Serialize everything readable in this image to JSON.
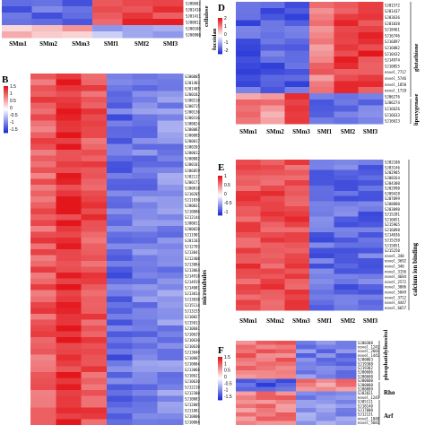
{
  "colors": {
    "low": "#1f2fd6",
    "mid": "#ffffff",
    "high": "#e3161b"
  },
  "panels": {
    "A": {
      "columns": [
        "SMm1",
        "SMm2",
        "SMm3",
        "SMf1",
        "SMf2",
        "SMf3"
      ],
      "rows": [
        "SJ00682",
        "SJ01410",
        "SJ01411",
        "SJ00012",
        "SJ00100",
        "SJ00900"
      ],
      "groups": [
        "cellulose",
        "fucoidan"
      ]
    },
    "B": {
      "label": "B",
      "legend_ticks": [
        "1.5",
        "1",
        "0.5",
        "0",
        "-0.5",
        "-1",
        "-1.5"
      ],
      "group": "microtubules",
      "rows": [
        "SJ00005",
        "SJ01403",
        "SJ01405",
        "SJ00182",
        "SJ00210",
        "SJ00715",
        "SJ00136",
        "SJ00316",
        "SJ00024",
        "SJ00087",
        "SJ00085",
        "SJ00017",
        "SJ00203",
        "SJ00012",
        "SJ00082",
        "SJ00101",
        "SJ06059",
        "SJ02117",
        "SJ00171",
        "SJ00018",
        "SJ10205",
        "SJ11830",
        "SJ00031",
        "SJ10006",
        "SJ12144",
        "SJ00011",
        "SJ00020",
        "SJ11901",
        "SJ01103",
        "SJ12703",
        "SJ13041",
        "SJ12408",
        "SJ13884",
        "SJ13064",
        "SJ14918",
        "SJ14919",
        "SJ14001",
        "SJ13014",
        "SJ13030",
        "SJ15114",
        "SJ13155",
        "SJ10027",
        "SJ15013",
        "SJ10601",
        "SJ10629",
        "SJ10630",
        "SJ10630",
        "SJ13040",
        "SJ10007",
        "SJ10004",
        "SJ13066",
        "SJ10621",
        "SJ10630",
        "SJ12210",
        "SJ12300",
        "SJ10003",
        "SJ12005",
        "SJ11001",
        "SJ10006",
        "SJ10004"
      ]
    },
    "D": {
      "label": "D",
      "legend_ticks": [
        "2",
        "1",
        "0",
        "-1",
        "-2"
      ],
      "columns": [
        "SMm1",
        "SMm2",
        "SMm3",
        "SMf1",
        "SMf2",
        "SMf3"
      ],
      "groups": [
        "glutathione",
        "lipoxygenase"
      ],
      "rows": [
        "SJ01572",
        "SJ01437",
        "SJ03636",
        "SJ01038",
        "SJ18461",
        "SJ16746",
        "SJ16897",
        "SJ16882",
        "SJ10432",
        "SJ14974",
        "SJ10855",
        "novel_7717",
        "novel_5746",
        "novel_1850",
        "novel_1718",
        "SJ06276",
        "SJ06274",
        "SJ16626",
        "SJ16633",
        "SJ16623"
      ]
    },
    "E": {
      "label": "E",
      "legend_ticks": [
        "1",
        "0.5",
        "0",
        "-0.5",
        "-1"
      ],
      "columns": [
        "SMm1",
        "SMm2",
        "SMm3",
        "SMf1",
        "SMf2",
        "SMf3"
      ],
      "group": "calcium ion binding",
      "rows": [
        "SJ02180",
        "SJ03146",
        "SJ02905",
        "SJ08264",
        "SJ04300",
        "SJ02990",
        "SJ09428",
        "SJ07099",
        "SJ08880",
        "SJ03090",
        "SJ15201",
        "SJ16051",
        "SJ15965",
        "SJ16098",
        "SJ14036",
        "SJ15250",
        "SJ15851",
        "SJ15250",
        "novel_340",
        "novel_3692",
        "novel_340",
        "novel_3156",
        "novel_4684",
        "novel_2572",
        "novel_3006",
        "novel_5849",
        "novel_3712",
        "novel_4447",
        "novel_6657"
      ]
    },
    "F": {
      "label": "F",
      "legend_ticks": [
        "1.5",
        "1",
        "0.5",
        "0",
        "-0.5",
        "-1",
        "-1.5"
      ],
      "groups": [
        "phosphatidylinositol",
        "Rho",
        "Arf"
      ],
      "rows": [
        "SJ00388",
        "novel_1241",
        "novel_2601",
        "novel_1441",
        "SJ00063",
        "SJ19388",
        "SJ19382",
        "SJ00606",
        "SJ00600",
        "SJ00600",
        "SJ00000",
        "SJ00009",
        "SJ02021",
        "novel_1241",
        "SJ05111",
        "SJ18140",
        "SJ17000",
        "SJ12131",
        "novel_1040",
        "novel_5681"
      ]
    }
  }
}
